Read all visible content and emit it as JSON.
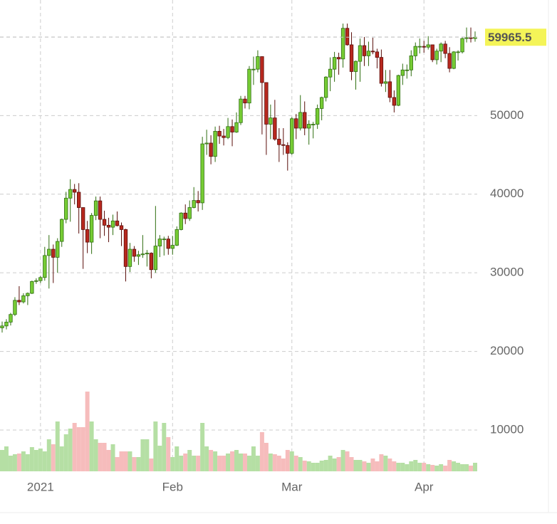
{
  "chart_data": {
    "type": "candlestick",
    "x": [
      0,
      1,
      2,
      3,
      4,
      5,
      6,
      7,
      8,
      9,
      10,
      11,
      12,
      13,
      14,
      15,
      16,
      17,
      18,
      19,
      20,
      21,
      22,
      23,
      24,
      25,
      26,
      27,
      28,
      29,
      30,
      31,
      32,
      33,
      34,
      35,
      36,
      37,
      38,
      39,
      40,
      41,
      42,
      43,
      44,
      45,
      46,
      47,
      48,
      49,
      50,
      51,
      52,
      53,
      54,
      55,
      56,
      57,
      58,
      59,
      60,
      61,
      62,
      63,
      64,
      65,
      66,
      67,
      68,
      69,
      70,
      71,
      72,
      73,
      74,
      75,
      76,
      77,
      78,
      79,
      80,
      81,
      82,
      83,
      84,
      85,
      86,
      87,
      88,
      89,
      90,
      91,
      92,
      93,
      94,
      95,
      96,
      97,
      98,
      99,
      100,
      101,
      102,
      103,
      104,
      105,
      106,
      107,
      108,
      109,
      110,
      111
    ],
    "open": [
      23000,
      23240,
      23730,
      24700,
      26500,
      26300,
      27080,
      27390,
      28900,
      29000,
      29400,
      32200,
      33000,
      31970,
      33990,
      36800,
      39500,
      40600,
      40250,
      38300,
      35500,
      33900,
      37300,
      39150,
      36800,
      36050,
      35800,
      36600,
      36000,
      35500,
      30800,
      33000,
      32100,
      32300,
      32400,
      32500,
      30400,
      33400,
      34300,
      34300,
      33100,
      33500,
      35500,
      37600,
      36900,
      38300,
      39200,
      38900,
      46400,
      46500,
      44800,
      48000,
      47400,
      47200,
      48600,
      47900,
      49100,
      52100,
      51600,
      55900,
      55900,
      57500,
      54200,
      48900,
      49700,
      47000,
      46300,
      46200,
      45200,
      49600,
      48400,
      50400,
      48400,
      48900,
      48900,
      50900,
      52300,
      54900,
      55900,
      57400,
      57200,
      61100,
      59000,
      55600,
      56900,
      58900,
      57600,
      58200,
      58100,
      57400,
      54100,
      54300,
      52300,
      51300,
      55100,
      55800,
      55800,
      57600,
      58800,
      58800,
      58700,
      59000,
      57100,
      58200,
      59100,
      57900,
      56000,
      58100,
      58100,
      59800,
      59900,
      59800
    ],
    "high": [
      23800,
      24100,
      24900,
      26900,
      28300,
      27400,
      27500,
      29000,
      29300,
      29600,
      33300,
      34800,
      33600,
      34400,
      36900,
      40300,
      41900,
      41300,
      41400,
      38300,
      36600,
      37600,
      39700,
      39700,
      37900,
      37000,
      37400,
      37800,
      36400,
      35600,
      33800,
      33400,
      32800,
      34800,
      32900,
      32600,
      38500,
      34800,
      34600,
      34700,
      34700,
      35900,
      37700,
      38700,
      39200,
      40900,
      40400,
      47300,
      48200,
      47500,
      48600,
      48700,
      48300,
      49700,
      49500,
      50400,
      52500,
      52500,
      56300,
      57500,
      58300,
      57500,
      54200,
      51400,
      52000,
      48400,
      48400,
      46600,
      49800,
      50200,
      52600,
      51800,
      49400,
      49200,
      51400,
      52400,
      55000,
      57400,
      58100,
      58000,
      61700,
      61700,
      60600,
      57000,
      59800,
      60000,
      59400,
      59900,
      58500,
      58400,
      55800,
      55800,
      53200,
      55200,
      56600,
      56500,
      58300,
      59300,
      59800,
      59500,
      60100,
      59000,
      58500,
      59300,
      59500,
      58700,
      58200,
      58300,
      60000,
      61200,
      61200,
      60700
    ],
    "low": [
      22400,
      22800,
      23300,
      24500,
      25900,
      26100,
      25900,
      27300,
      28600,
      28700,
      29000,
      28000,
      28700,
      30000,
      33300,
      36300,
      36500,
      38700,
      35000,
      30500,
      32500,
      32400,
      36700,
      34400,
      34700,
      33900,
      34800,
      35900,
      33400,
      28900,
      30100,
      31400,
      31000,
      31900,
      30800,
      29300,
      30000,
      32000,
      32200,
      32300,
      32300,
      33400,
      35400,
      36200,
      36600,
      38200,
      37800,
      38000,
      45000,
      43800,
      44100,
      46400,
      46200,
      47000,
      46100,
      47800,
      48800,
      50900,
      50800,
      53900,
      55500,
      47600,
      45000,
      47000,
      46800,
      44100,
      45000,
      43000,
      45000,
      47000,
      48100,
      47500,
      46300,
      47100,
      48300,
      49400,
      51800,
      53100,
      54300,
      55200,
      56100,
      58900,
      54500,
      53300,
      54300,
      56300,
      56300,
      57800,
      56000,
      53700,
      53000,
      51700,
      50400,
      51200,
      53900,
      54700,
      55000,
      57000,
      57900,
      58000,
      58400,
      56800,
      56500,
      56800,
      57300,
      55500,
      55900,
      57000,
      57900,
      59300,
      59300,
      59400
    ],
    "close": [
      23240,
      23730,
      24700,
      26500,
      26300,
      27080,
      27390,
      28900,
      29000,
      29400,
      32200,
      33000,
      31970,
      33990,
      36800,
      39500,
      40600,
      40250,
      38300,
      35500,
      33900,
      37300,
      39150,
      36800,
      36050,
      35800,
      36600,
      36000,
      35500,
      30800,
      33000,
      32100,
      32300,
      32400,
      32500,
      30400,
      33400,
      34300,
      34300,
      33100,
      33500,
      35500,
      37600,
      36900,
      38300,
      39200,
      38900,
      46400,
      46500,
      44800,
      48000,
      47400,
      47200,
      48600,
      47900,
      49100,
      52100,
      51600,
      55900,
      55900,
      57500,
      54200,
      48900,
      49700,
      47000,
      46300,
      46200,
      45200,
      49600,
      48400,
      50400,
      48400,
      48900,
      48900,
      50900,
      52300,
      54900,
      55900,
      57400,
      57200,
      61100,
      59000,
      55600,
      56900,
      58900,
      57600,
      58200,
      58100,
      57400,
      54100,
      54300,
      52300,
      51300,
      55100,
      55800,
      55800,
      57600,
      58800,
      58800,
      58700,
      59000,
      57100,
      58200,
      59100,
      57900,
      56000,
      58100,
      58100,
      59800,
      59900,
      59800,
      59965.5
    ],
    "volume": [
      30,
      35,
      22,
      24,
      25,
      28,
      24,
      34,
      30,
      32,
      28,
      45,
      38,
      70,
      35,
      52,
      60,
      68,
      62,
      62,
      112,
      70,
      45,
      40,
      40,
      30,
      38,
      20,
      28,
      28,
      28,
      20,
      20,
      45,
      45,
      18,
      70,
      36,
      68,
      48,
      20,
      35,
      22,
      25,
      30,
      22,
      22,
      68,
      35,
      30,
      28,
      22,
      22,
      25,
      28,
      30,
      25,
      25,
      22,
      35,
      22,
      55,
      40,
      25,
      24,
      22,
      18,
      30,
      28,
      22,
      20,
      15,
      14,
      12,
      12,
      15,
      16,
      22,
      18,
      20,
      30,
      28,
      20,
      16,
      16,
      14,
      12,
      18,
      14,
      24,
      22,
      18,
      14,
      12,
      12,
      10,
      14,
      16,
      12,
      12,
      10,
      9,
      8,
      10,
      8,
      16,
      14,
      12,
      10,
      10,
      8,
      12
    ],
    "vlim": [
      0,
      120
    ],
    "up_color": "#76cc34",
    "down_color": "#b8281e",
    "up_volume_color": "#b5dfa4",
    "down_volume_color": "#f6bcbc",
    "last_price": 59965.5,
    "xlim": [
      -0.5,
      111.5
    ],
    "xticks": [
      {
        "value": 9,
        "label": "2021"
      },
      {
        "value": 40,
        "label": "Feb"
      },
      {
        "value": 68,
        "label": "Mar"
      },
      {
        "value": 99,
        "label": "Apr"
      }
    ],
    "ylim": [
      4750,
      64700
    ],
    "yticks": [
      10000,
      20000,
      30000,
      40000,
      50000,
      60000
    ],
    "grid": true
  }
}
